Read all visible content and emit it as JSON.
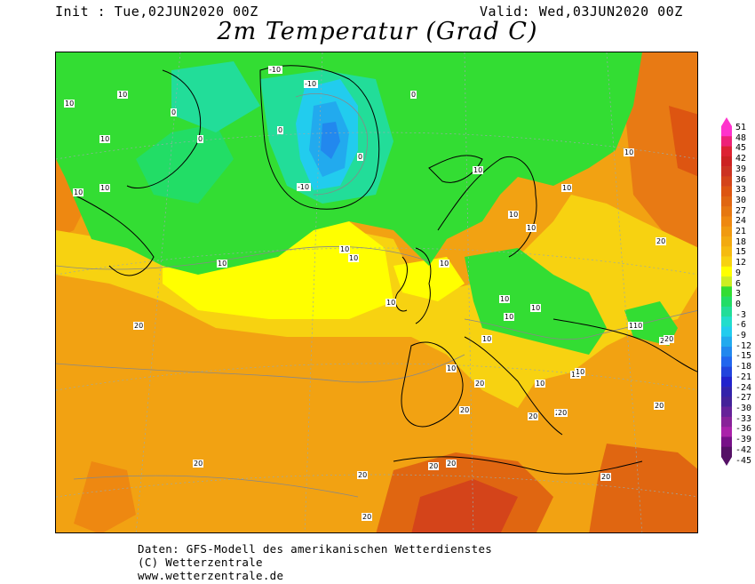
{
  "header": {
    "init": "Init : Tue,02JUN2020 00Z",
    "valid": "Valid: Wed,03JUN2020 00Z",
    "title": "2m Temperatur (Grad C)"
  },
  "colorbar": {
    "labels": [
      "51",
      "48",
      "45",
      "42",
      "39",
      "36",
      "33",
      "30",
      "27",
      "24",
      "21",
      "18",
      "15",
      "12",
      "9",
      "6",
      "3",
      "0",
      "-3",
      "-6",
      "-9",
      "-12",
      "-15",
      "-18",
      "-21",
      "-24",
      "-27",
      "-30",
      "-33",
      "-36",
      "-39",
      "-42",
      "-45"
    ],
    "colors": [
      "#ff33cc",
      "#ee2277",
      "#dd2233",
      "#cc2222",
      "#cc3322",
      "#d4441a",
      "#dd5511",
      "#e06611",
      "#e67711",
      "#ee8811",
      "#f09a11",
      "#f2aa11",
      "#f5bb11",
      "#f7d211",
      "#ffff00",
      "#ccee22",
      "#33dd33",
      "#22dd66",
      "#22dd99",
      "#22ddcc",
      "#22ccee",
      "#22aaee",
      "#2288ee",
      "#2266ee",
      "#2244dd",
      "#2222cc",
      "#3322aa",
      "#442299",
      "#662299",
      "#882299",
      "#aa22aa",
      "#771188",
      "#551166"
    ]
  },
  "map": {
    "contour_labels": [
      "10",
      "10",
      "10",
      "10",
      "10",
      "0",
      "0",
      "0",
      "0",
      "0",
      "-10",
      "-10",
      "-10",
      "10",
      "10",
      "10",
      "10",
      "10",
      "10",
      "10",
      "10",
      "10",
      "10",
      "10",
      "10",
      "10",
      "10",
      "20",
      "20",
      "20",
      "20",
      "20",
      "20",
      "20",
      "20",
      "20",
      "20",
      "20",
      "20",
      "20",
      "20",
      "20",
      "10",
      "10",
      "10",
      "10",
      "10",
      "10",
      "20"
    ]
  },
  "footer": {
    "line1": "Daten: GFS-Modell des amerikanischen Wetterdienstes",
    "line2": "(C) Wetterzentrale",
    "line3": "www.wetterzentrale.de"
  }
}
